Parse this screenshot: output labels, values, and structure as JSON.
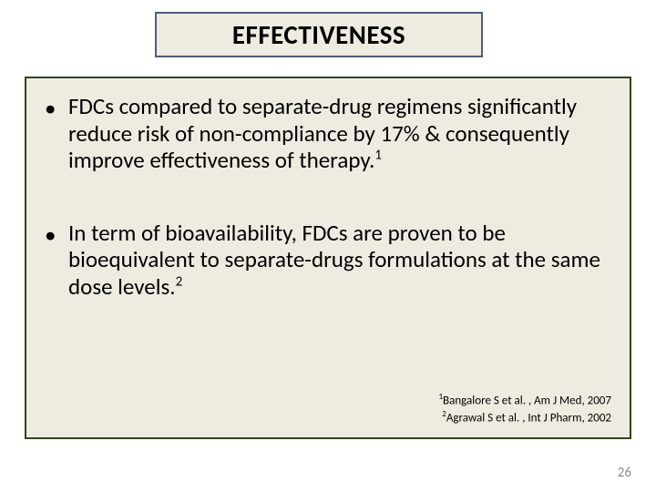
{
  "title": "EFFECTIVENESS",
  "bullets": [
    {
      "text": "FDCs compared to separate-drug regimens significantly reduce risk of non-compliance by 17% & consequently improve effectiveness of therapy.",
      "sup": "1"
    },
    {
      "text": "In term of bioavailability, FDCs are proven to be bioequivalent to separate-drugs formulations at the same dose levels.",
      "sup": "2"
    }
  ],
  "refs": [
    {
      "sup": "1",
      "text": "Bangalore S et al. , Am J Med, 2007"
    },
    {
      "sup": "2",
      "text": "Agrawal S et al. , Int J Pharm, 2002"
    }
  ],
  "page_number": "26",
  "colors": {
    "panel_bg": "#eeece1",
    "title_border": "#4a5d7a",
    "content_border": "#2f4214",
    "page_number_color": "#8a8a8a"
  }
}
